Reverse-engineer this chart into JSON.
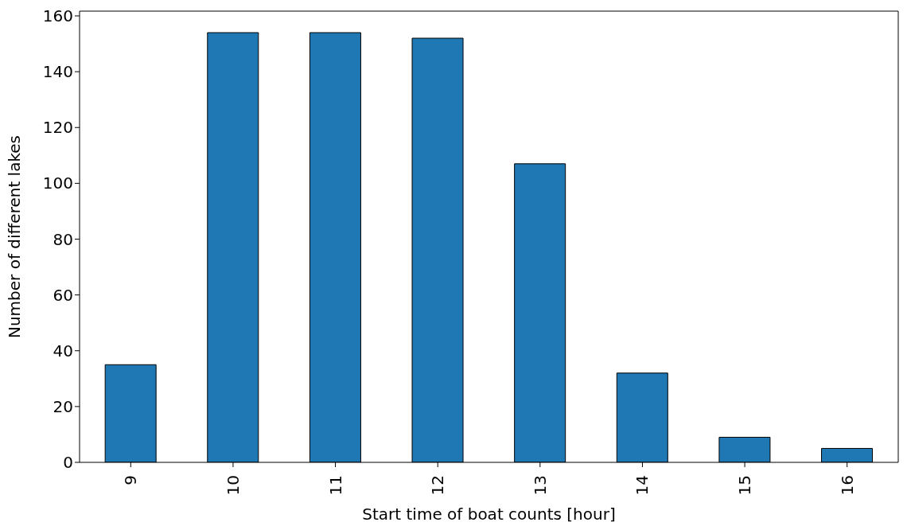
{
  "chart_data": {
    "type": "bar",
    "xlabel": "Start time of boat counts [hour]",
    "ylabel": "Number of different lakes",
    "categories": [
      "9",
      "10",
      "11",
      "12",
      "13",
      "14",
      "15",
      "16"
    ],
    "values": [
      35,
      154,
      154,
      152,
      107,
      32,
      9,
      5
    ],
    "color": "#1f77b4",
    "ylim": [
      0,
      161.7
    ],
    "yticks": [
      0,
      20,
      40,
      60,
      80,
      100,
      120,
      140,
      160
    ],
    "grid": false,
    "legend": false
  }
}
